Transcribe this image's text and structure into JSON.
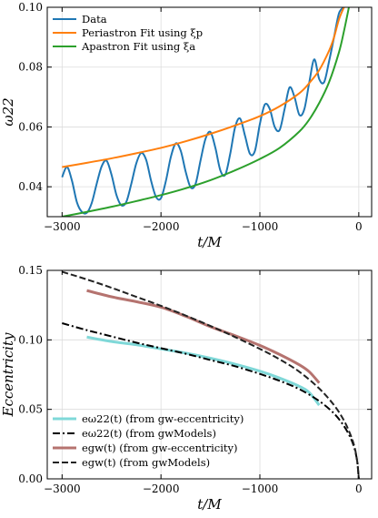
{
  "chart_data": [
    {
      "type": "line",
      "xlabel": "t/M",
      "ylabel": "ω22",
      "xlim": [
        -3150,
        130
      ],
      "ylim": [
        0.03,
        0.1
      ],
      "xticks": [
        "−3000",
        "−2000",
        "−1000",
        "0"
      ],
      "yticks": [
        "0.04",
        "0.06",
        "0.08",
        "0.10"
      ],
      "grid": true,
      "legend_position": "top-left",
      "series": [
        {
          "name": "Data",
          "color": "#1f77b4",
          "description_points": {
            "x": [
              -3000,
              -2950,
              -2900,
              -2850,
              -2800,
              -2750,
              -2700,
              -2650,
              -2600,
              -2550,
              -2500,
              -2450,
              -2400,
              -2350,
              -2300,
              -2250,
              -2200,
              -2150,
              -2100,
              -2050,
              -2000,
              -1950,
              -1900,
              -1850,
              -1800,
              -1750,
              -1700,
              -1650,
              -1600,
              -1550,
              -1500,
              -1450,
              -1400,
              -1350,
              -1300,
              -1250,
              -1200,
              -1150,
              -1100,
              -1050,
              -1000,
              -950,
              -900,
              -850,
              -800,
              -750,
              -700,
              -650,
              -600,
              -550,
              -500,
              -450,
              -400,
              -350,
              -300,
              -250,
              -200,
              -150
            ],
            "y": [
              0.0432,
              0.0466,
              0.042,
              0.0348,
              0.0316,
              0.0313,
              0.0346,
              0.041,
              0.0468,
              0.0487,
              0.044,
              0.0372,
              0.0338,
              0.035,
              0.041,
              0.0478,
              0.0513,
              0.049,
              0.042,
              0.0366,
              0.0362,
              0.042,
              0.05,
              0.0545,
              0.052,
              0.045,
              0.0398,
              0.041,
              0.0488,
              0.056,
              0.0583,
              0.053,
              0.0455,
              0.044,
              0.051,
              0.06,
              0.0628,
              0.057,
              0.051,
              0.052,
              0.061,
              0.0675,
              0.066,
              0.06,
              0.059,
              0.066,
              0.0732,
              0.07,
              0.064,
              0.066,
              0.075,
              0.0826,
              0.076,
              0.075,
              0.082,
              0.09,
              0.098,
              0.1
            ]
          }
        },
        {
          "name": "Periastron Fit using ξp",
          "color": "#ff7f0e",
          "x": [
            -3000,
            -2750,
            -2500,
            -2250,
            -2000,
            -1750,
            -1500,
            -1250,
            -1000,
            -800,
            -600,
            -500,
            -400,
            -300,
            -250,
            -200,
            -150
          ],
          "y": [
            0.0466,
            0.048,
            0.0495,
            0.0512,
            0.053,
            0.0552,
            0.0577,
            0.0605,
            0.0636,
            0.0669,
            0.0713,
            0.0747,
            0.079,
            0.0855,
            0.09,
            0.096,
            0.1
          ]
        },
        {
          "name": "Apastron Fit using ξa",
          "color": "#2ca02c",
          "x": [
            -3000,
            -2750,
            -2500,
            -2250,
            -2000,
            -1750,
            -1500,
            -1250,
            -1000,
            -800,
            -600,
            -500,
            -400,
            -300,
            -200,
            -150,
            -100
          ],
          "y": [
            0.03,
            0.0316,
            0.0333,
            0.0352,
            0.0372,
            0.0395,
            0.0422,
            0.0455,
            0.0493,
            0.053,
            0.0585,
            0.0625,
            0.068,
            0.075,
            0.085,
            0.092,
            0.1
          ]
        }
      ]
    },
    {
      "type": "line",
      "xlabel": "t/M",
      "ylabel": "Eccentricity",
      "xlim": [
        -3150,
        130
      ],
      "ylim": [
        0.0,
        0.15
      ],
      "xticks": [
        "−3000",
        "−2000",
        "−1000",
        "0"
      ],
      "yticks": [
        "0.00",
        "0.05",
        "0.10",
        "0.15"
      ],
      "grid": true,
      "legend_position": "bottom-left",
      "series": [
        {
          "name": "eω22(t) (from gw-eccentricity)",
          "color": "#7fd8d8",
          "style": "solid",
          "x": [
            -2750,
            -2500,
            -2250,
            -2000,
            -1750,
            -1500,
            -1250,
            -1000,
            -800,
            -600,
            -500,
            -400
          ],
          "y": [
            0.102,
            0.0988,
            0.0965,
            0.0935,
            0.0905,
            0.0868,
            0.0825,
            0.0775,
            0.0725,
            0.0665,
            0.062,
            0.053
          ]
        },
        {
          "name": "eω22(t) (from gwModels)",
          "color": "#000000",
          "style": "dashdot",
          "x": [
            -3000,
            -2750,
            -2500,
            -2250,
            -2000,
            -1750,
            -1500,
            -1250,
            -1000,
            -800,
            -600,
            -400,
            -250,
            -150,
            -80,
            -40,
            -15,
            0
          ],
          "y": [
            0.112,
            0.107,
            0.1025,
            0.098,
            0.094,
            0.09,
            0.0855,
            0.081,
            0.0755,
            0.0705,
            0.0645,
            0.056,
            0.047,
            0.038,
            0.029,
            0.021,
            0.012,
            0.0
          ]
        },
        {
          "name": "egw(t) (from gw-eccentricity)",
          "color": "#b5736f",
          "style": "solid",
          "x": [
            -2750,
            -2500,
            -2250,
            -2000,
            -1750,
            -1500,
            -1250,
            -1000,
            -800,
            -600,
            -500,
            -400
          ],
          "y": [
            0.1355,
            0.131,
            0.1275,
            0.1235,
            0.117,
            0.1095,
            0.103,
            0.096,
            0.0895,
            0.082,
            0.077,
            0.069
          ]
        },
        {
          "name": "egw(t) (from gwModels)",
          "color": "#222222",
          "style": "dashed",
          "x": [
            -3000,
            -2750,
            -2500,
            -2250,
            -2000,
            -1750,
            -1500,
            -1250,
            -1000,
            -800,
            -600,
            -400,
            -250,
            -150,
            -80,
            -40,
            -15,
            0
          ],
          "y": [
            0.149,
            0.1435,
            0.1375,
            0.131,
            0.1245,
            0.1175,
            0.11,
            0.102,
            0.0935,
            0.086,
            0.077,
            0.065,
            0.053,
            0.042,
            0.031,
            0.022,
            0.012,
            0.0
          ]
        }
      ]
    }
  ]
}
